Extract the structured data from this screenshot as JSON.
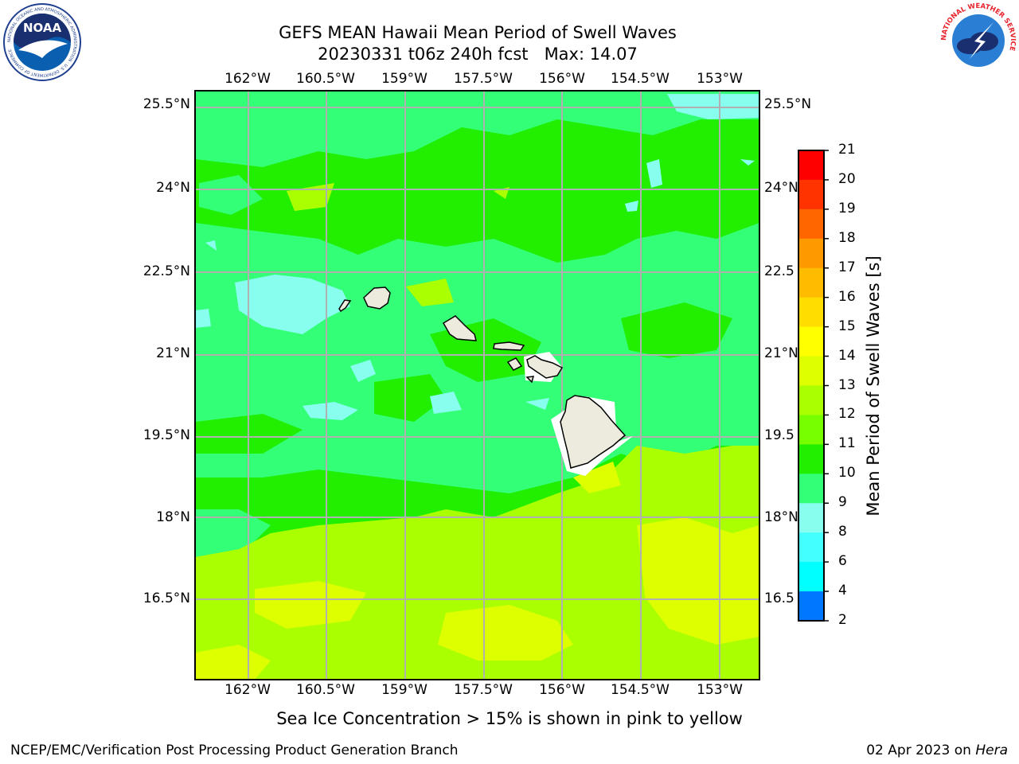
{
  "title": {
    "line1": "GEFS MEAN Hawaii Mean Period of Swell Waves",
    "line2": "20230331 t06z 240h fcst   Max: 14.07"
  },
  "map": {
    "lon_labels": [
      "162°W",
      "160.5°W",
      "159°W",
      "157.5°W",
      "156°W",
      "154.5°W",
      "153°W"
    ],
    "lat_labels_left": [
      "25.5°N",
      "24°N",
      "22.5°N",
      "21°N",
      "19.5°N",
      "18°N",
      "16.5°N"
    ],
    "lat_labels_right": [
      "25.5°N",
      "24°N",
      "22.5",
      "21°N",
      "19.5",
      "18°N",
      "16.5"
    ],
    "field_levels_s": {
      "dominant_north": 11,
      "south_east": 13,
      "cyan_patches": 9
    }
  },
  "colorbar": {
    "label": "Mean Period of Swell Waves [s]",
    "ticks": [
      "21",
      "20",
      "19",
      "18",
      "17",
      "16",
      "15",
      "14",
      "13",
      "12",
      "11",
      "10",
      "9",
      "8",
      "6",
      "4",
      "2"
    ],
    "colors": [
      "#ff0000",
      "#ff3300",
      "#ff6600",
      "#ff9900",
      "#ffbb00",
      "#ffdd00",
      "#ffff00",
      "#ddff00",
      "#aaff00",
      "#77ff00",
      "#22ee00",
      "#33ff77",
      "#88ffee",
      "#44ffff",
      "#00ffff",
      "#0077ff",
      "#0000ff"
    ]
  },
  "note": "Sea Ice Concentration > 15% is shown in pink to yellow",
  "footer": {
    "left": "NCEP/EMC/Verification Post Processing Product Generation Branch",
    "date": "02 Apr 2023 on",
    "machine": "Hera"
  },
  "logos": {
    "noaa": "NOAA",
    "noaa_ring": "NATIONAL OCEANIC AND ATMOSPHERIC ADMINISTRATION · U.S. DEPARTMENT OF COMMERCE",
    "nws_ring": "NATIONAL WEATHER SERVICE"
  }
}
